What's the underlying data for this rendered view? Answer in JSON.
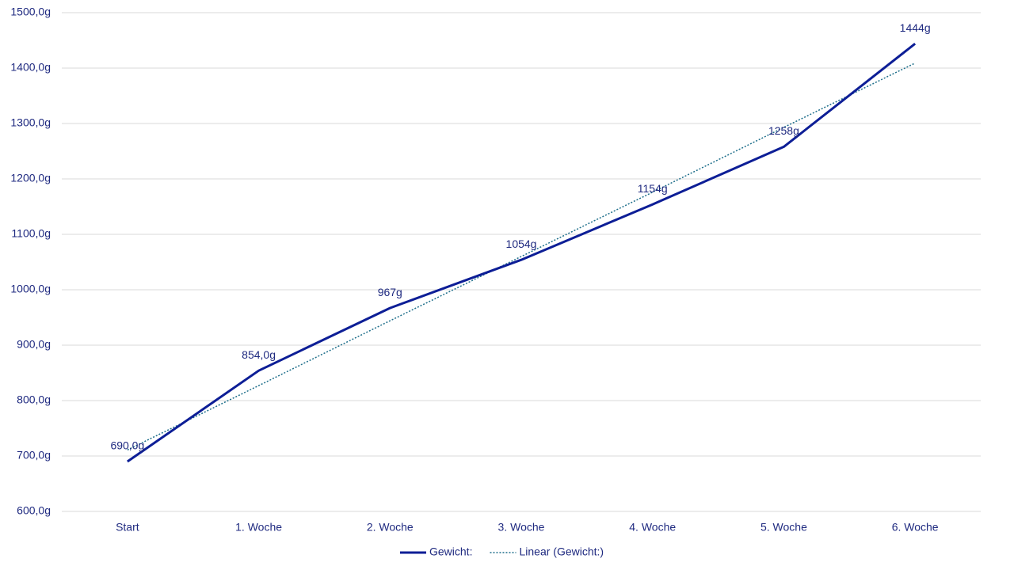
{
  "chart_data": {
    "type": "line",
    "categories": [
      "Start",
      "1. Woche",
      "2. Woche",
      "3. Woche",
      "4. Woche",
      "5. Woche",
      "6. Woche"
    ],
    "series": [
      {
        "name": "Gewicht:",
        "color": "#0d1e96",
        "style": "solid",
        "values": [
          690,
          854,
          967,
          1054,
          1154,
          1258,
          1444
        ],
        "value_labels": [
          "690,0g",
          "854,0g",
          "967g",
          "1054g",
          "1154g",
          "1258g",
          "1444g"
        ]
      },
      {
        "name": "Linear (Gewicht:)",
        "color": "#1f6f8b",
        "style": "dotted",
        "values": [
          711,
          827,
          944,
          1060,
          1176,
          1293,
          1409
        ]
      }
    ],
    "ylim": [
      600,
      1500
    ],
    "yticks": [
      {
        "value": 600,
        "label": "600,0g"
      },
      {
        "value": 700,
        "label": "700,0g"
      },
      {
        "value": 800,
        "label": "800,0g"
      },
      {
        "value": 900,
        "label": "900,0g"
      },
      {
        "value": 1000,
        "label": "1000,0g"
      },
      {
        "value": 1100,
        "label": "1100,0g"
      },
      {
        "value": 1200,
        "label": "1200,0g"
      },
      {
        "value": 1300,
        "label": "1300,0g"
      },
      {
        "value": 1400,
        "label": "1400,0g"
      },
      {
        "value": 1500,
        "label": "1500,0g"
      }
    ],
    "grid": true,
    "legend": "bottom"
  }
}
